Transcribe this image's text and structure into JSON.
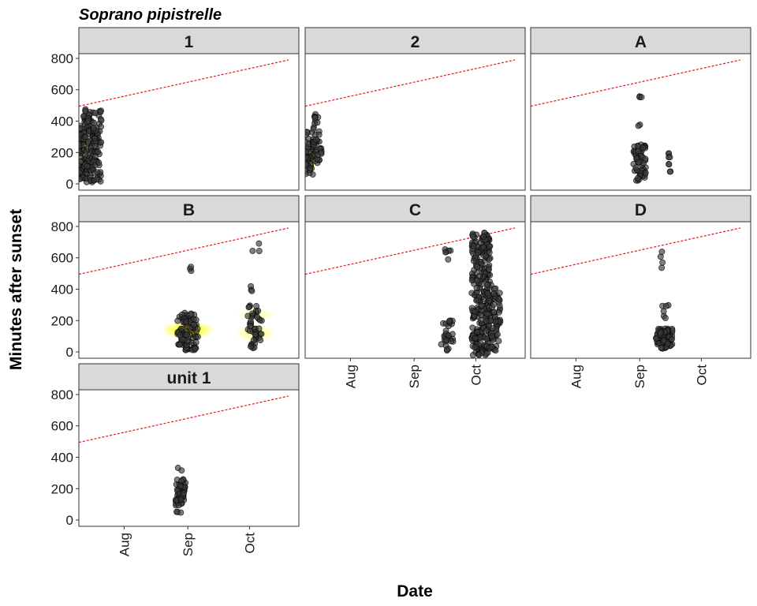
{
  "chart_data": {
    "type": "scatter",
    "title": "Soprano pipistrelle",
    "xlabel": "Date",
    "ylabel": "Minutes after sunset",
    "x_ticks": [
      "Aug",
      "Sep",
      "Oct"
    ],
    "x_tick_dates": [
      "2019-08-01",
      "2019-09-01",
      "2019-10-01"
    ],
    "xlim": [
      "2019-07-10",
      "2019-10-25"
    ],
    "y_ticks": [
      0,
      200,
      400,
      600,
      800
    ],
    "ylim": [
      -40,
      830
    ],
    "grid": false,
    "colors": {
      "point_fill": "#3a3a3a",
      "point_stroke": "#000000",
      "sunrise_line": "#e8161c",
      "density": "#ffff00",
      "strip_fill": "#d9d9d9",
      "panel_border": "#333333"
    },
    "reference_line": {
      "style": "dashed",
      "from": {
        "x": "2019-07-10",
        "y": 495
      },
      "to": {
        "x": "2019-10-20",
        "y": 790
      }
    },
    "panels": [
      {
        "name": "1",
        "clusters": [
          {
            "x_range": [
              "2019-07-10",
              "2019-07-13"
            ],
            "y_range": [
              20,
              440
            ],
            "n": 70
          },
          {
            "x_range": [
              "2019-07-13",
              "2019-07-17"
            ],
            "y_range": [
              10,
              490
            ],
            "n": 70
          },
          {
            "x_range": [
              "2019-07-17",
              "2019-07-21"
            ],
            "y_range": [
              0,
              470
            ],
            "n": 60
          }
        ],
        "density": [
          {
            "x": "2019-07-13",
            "y": 200,
            "spread_days": 4,
            "spread_min": 150,
            "strength": 0.6
          }
        ]
      },
      {
        "name": "2",
        "clusters": [
          {
            "x_range": [
              "2019-07-10",
              "2019-07-14"
            ],
            "y_range": [
              50,
              340
            ],
            "n": 45
          },
          {
            "x_range": [
              "2019-07-14",
              "2019-07-17"
            ],
            "y_range": [
              70,
              460
            ],
            "n": 30
          },
          {
            "x_range": [
              "2019-07-17",
              "2019-07-18"
            ],
            "y_range": [
              180,
              230
            ],
            "n": 6
          }
        ],
        "density": [
          {
            "x": "2019-07-14",
            "y": 200,
            "spread_days": 2,
            "spread_min": 120,
            "strength": 0.8
          }
        ]
      },
      {
        "name": "A",
        "clusters": [
          {
            "x_range": [
              "2019-08-29",
              "2019-09-04"
            ],
            "y_range": [
              20,
              260
            ],
            "n": 55
          },
          {
            "x_range": [
              "2019-08-31",
              "2019-09-02"
            ],
            "y_range": [
              550,
              570
            ],
            "n": 3
          },
          {
            "x_range": [
              "2019-08-31",
              "2019-09-02"
            ],
            "y_range": [
              360,
              390
            ],
            "n": 2
          },
          {
            "x_range": [
              "2019-09-15",
              "2019-09-16"
            ],
            "y_range": [
              40,
              220
            ],
            "n": 8
          }
        ],
        "density": []
      },
      {
        "name": "B",
        "clusters": [
          {
            "x_range": [
              "2019-08-27",
              "2019-09-06"
            ],
            "y_range": [
              10,
              250
            ],
            "n": 90
          },
          {
            "x_range": [
              "2019-08-31",
              "2019-09-03"
            ],
            "y_range": [
              480,
              560
            ],
            "n": 3
          },
          {
            "x_range": [
              "2019-09-30",
              "2019-10-07"
            ],
            "y_range": [
              20,
              300
            ],
            "n": 45
          },
          {
            "x_range": [
              "2019-10-01",
              "2019-10-04"
            ],
            "y_range": [
              380,
              430
            ],
            "n": 3
          },
          {
            "x_range": [
              "2019-10-02",
              "2019-10-06"
            ],
            "y_range": [
              640,
              710
            ],
            "n": 3
          }
        ],
        "density": [
          {
            "x": "2019-09-01",
            "y": 140,
            "spread_days": 13,
            "spread_min": 58,
            "strength": 1.0
          },
          {
            "x": "2019-10-04",
            "y": 120,
            "spread_days": 10,
            "spread_min": 55,
            "strength": 0.45
          },
          {
            "x": "2019-10-04",
            "y": 240,
            "spread_days": 10,
            "spread_min": 40,
            "strength": 0.3
          }
        ]
      },
      {
        "name": "C",
        "clusters": [
          {
            "x_range": [
              "2019-09-14",
              "2019-09-20"
            ],
            "y_range": [
              10,
              200
            ],
            "n": 30
          },
          {
            "x_range": [
              "2019-09-16",
              "2019-09-19"
            ],
            "y_range": [
              460,
              660
            ],
            "n": 6
          },
          {
            "x_range": [
              "2019-09-29",
              "2019-10-08"
            ],
            "y_range": [
              -20,
              760
            ],
            "n": 260
          },
          {
            "x_range": [
              "2019-10-06",
              "2019-10-13"
            ],
            "y_range": [
              0,
              430
            ],
            "n": 80
          }
        ],
        "density": [
          {
            "x": "2019-10-01",
            "y": 60,
            "spread_days": 2,
            "spread_min": 60,
            "strength": 0.5
          }
        ]
      },
      {
        "name": "D",
        "clusters": [
          {
            "x_range": [
              "2019-09-09",
              "2019-09-17"
            ],
            "y_range": [
              20,
              150
            ],
            "n": 80
          },
          {
            "x_range": [
              "2019-09-12",
              "2019-09-15"
            ],
            "y_range": [
              200,
              300
            ],
            "n": 6
          },
          {
            "x_range": [
              "2019-09-11",
              "2019-09-13"
            ],
            "y_range": [
              510,
              650
            ],
            "n": 4
          }
        ],
        "density": []
      },
      {
        "name": "unit 1",
        "clusters": [
          {
            "x_range": [
              "2019-08-26",
              "2019-08-31"
            ],
            "y_range": [
              90,
              260
            ],
            "n": 45
          },
          {
            "x_range": [
              "2019-08-27",
              "2019-08-30"
            ],
            "y_range": [
              280,
              360
            ],
            "n": 2
          },
          {
            "x_range": [
              "2019-08-26",
              "2019-08-30"
            ],
            "y_range": [
              40,
              60
            ],
            "n": 3
          }
        ],
        "density": []
      }
    ]
  }
}
